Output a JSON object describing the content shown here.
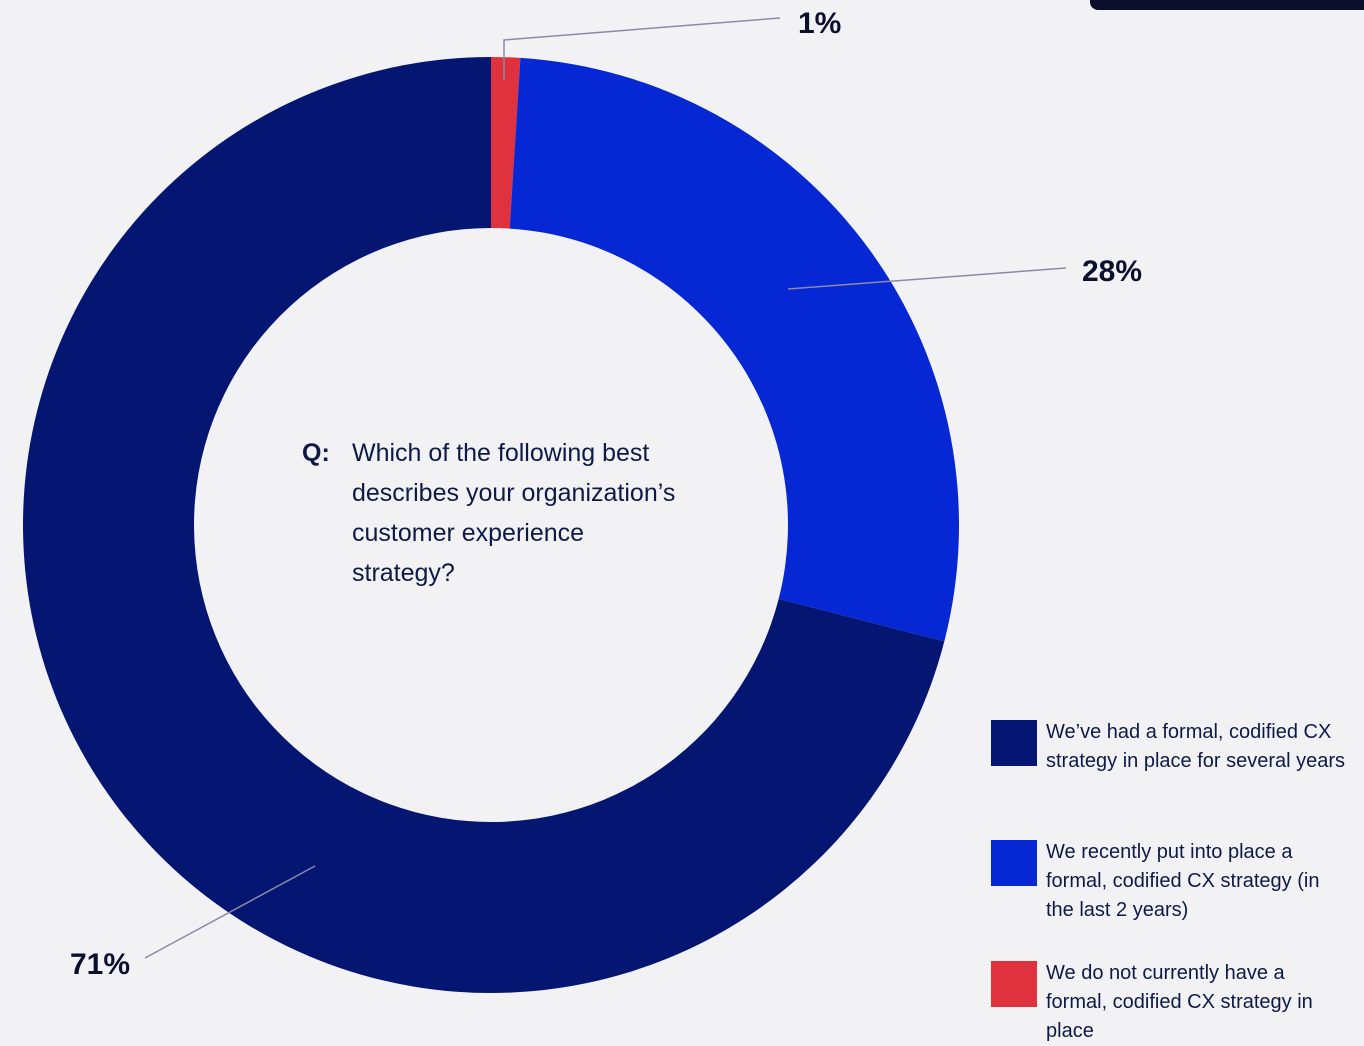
{
  "chart_data": {
    "type": "pie",
    "donut": true,
    "question_prefix": "Q:",
    "question": "Which of the following best describes your organization’s customer experience strategy?",
    "slices": [
      {
        "label": "We’ve had a formal, codified CX strategy in place for several years",
        "value": 71,
        "value_label": "71%",
        "color": "#041672"
      },
      {
        "label": "We recently put into place a formal, codified CX strategy (in the last 2 years)",
        "value": 28,
        "value_label": "28%",
        "color": "#0528d4"
      },
      {
        "label": "We do not currently have a formal, codified CX strategy in place",
        "value": 1,
        "value_label": "1%",
        "color": "#e0313f"
      }
    ],
    "start_angle_note": "clockwise from top",
    "legend_position": "bottom-right"
  }
}
